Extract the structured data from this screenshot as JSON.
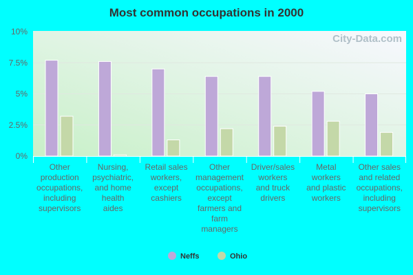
{
  "chart_data": {
    "type": "bar",
    "title": "Most common occupations in 2000",
    "watermark": "City-Data.com",
    "categories": [
      "Other production occupations, including supervisors",
      "Nursing, psychiatric, and home health aides",
      "Retail sales workers, except cashiers",
      "Other management occupations, except farmers and farm managers",
      "Driver/sales workers and truck drivers",
      "Metal workers and plastic workers",
      "Other sales and related occupations, including supervisors"
    ],
    "category_lines": [
      [
        "Other",
        "production",
        "occupations,",
        "including",
        "supervisors"
      ],
      [
        "Nursing,",
        "psychiatric,",
        "and home",
        "health",
        "aides"
      ],
      [
        "Retail sales",
        "workers,",
        "except",
        "cashiers"
      ],
      [
        "Other",
        "management",
        "occupations,",
        "except",
        "farmers and",
        "farm",
        "managers"
      ],
      [
        "Driver/sales",
        "workers",
        "and truck",
        "drivers"
      ],
      [
        "Metal",
        "workers",
        "and plastic",
        "workers"
      ],
      [
        "Other sales",
        "and related",
        "occupations,",
        "including",
        "supervisors"
      ]
    ],
    "series": [
      {
        "name": "Neffs",
        "color": "#bea8d8",
        "values": [
          7.7,
          7.6,
          7.0,
          6.4,
          6.4,
          5.2,
          5.0
        ]
      },
      {
        "name": "Ohio",
        "color": "#c4d8a8",
        "values": [
          3.2,
          0.1,
          1.3,
          2.2,
          2.4,
          2.8,
          1.9
        ]
      }
    ],
    "ylim": [
      0,
      10
    ],
    "yticks": [
      0,
      2.5,
      5,
      7.5,
      10
    ],
    "ytick_labels": [
      "0%",
      "2.5%",
      "5%",
      "7.5%",
      "10%"
    ],
    "grid": true,
    "legend": "bottom"
  }
}
